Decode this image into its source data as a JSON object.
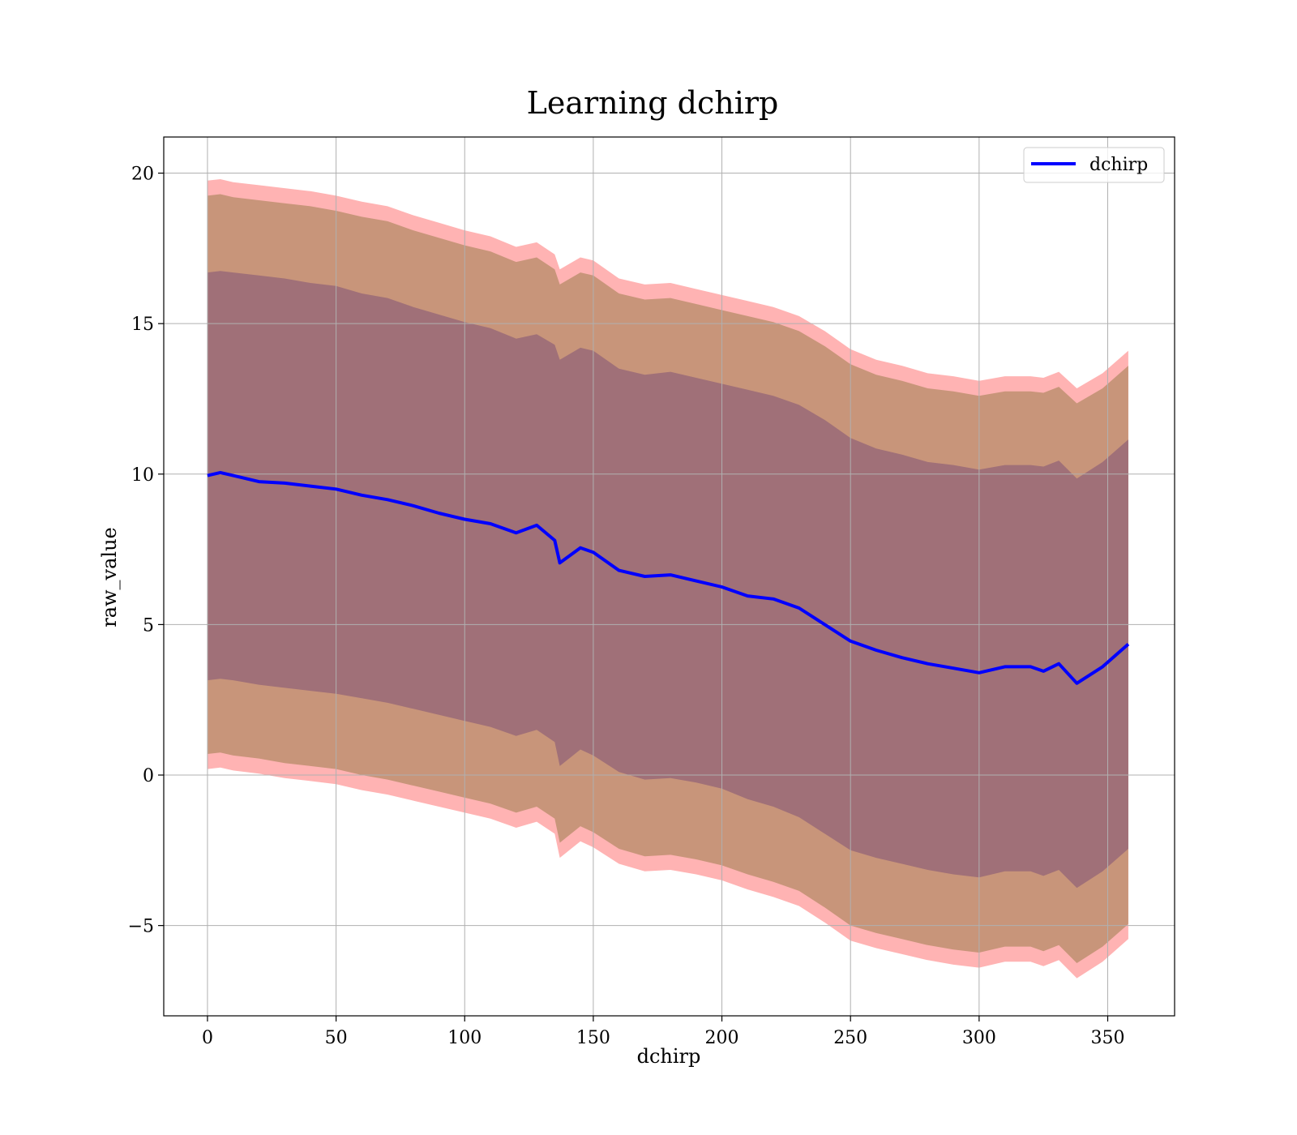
{
  "chart_data": {
    "type": "line",
    "title": "Learning dchirp",
    "xlabel": "dchirp",
    "ylabel": "raw_value",
    "xlim": [
      -17,
      376
    ],
    "ylim": [
      -8.0,
      21.2
    ],
    "x_ticks": [
      0,
      50,
      100,
      150,
      200,
      250,
      300,
      350
    ],
    "y_ticks": [
      -5,
      0,
      5,
      10,
      15,
      20
    ],
    "y_tick_labels": [
      "−5",
      "0",
      "5",
      "10",
      "15",
      "20"
    ],
    "grid": true,
    "legend": {
      "position": "top-right",
      "entries": [
        "dchirp"
      ]
    },
    "colors": {
      "line": "#0000ff",
      "band_outer": "#ffb3b3",
      "band_middle": "#c8957a",
      "band_inner": "#a07078"
    },
    "series": [
      {
        "name": "dchirp",
        "x": [
          0,
          5,
          10,
          20,
          30,
          40,
          50,
          60,
          70,
          80,
          90,
          100,
          110,
          120,
          128,
          135,
          137,
          145,
          150,
          160,
          170,
          180,
          190,
          200,
          210,
          220,
          230,
          240,
          250,
          260,
          270,
          280,
          290,
          300,
          310,
          320,
          325,
          331,
          338,
          348,
          358
        ],
        "mean": [
          9.95,
          10.05,
          9.95,
          9.75,
          9.7,
          9.6,
          9.5,
          9.3,
          9.15,
          8.95,
          8.7,
          8.5,
          8.35,
          8.05,
          8.3,
          7.8,
          7.05,
          7.55,
          7.4,
          6.8,
          6.6,
          6.65,
          6.45,
          6.25,
          5.95,
          5.85,
          5.55,
          5.0,
          4.45,
          4.15,
          3.9,
          3.7,
          3.55,
          3.4,
          3.6,
          3.6,
          3.45,
          3.7,
          3.05,
          3.6,
          4.35
        ],
        "inner_upper": [
          16.7,
          16.75,
          16.7,
          16.6,
          16.5,
          16.35,
          16.25,
          16.0,
          15.85,
          15.55,
          15.3,
          15.05,
          14.85,
          14.5,
          14.65,
          14.3,
          13.8,
          14.2,
          14.1,
          13.5,
          13.3,
          13.4,
          13.2,
          13.0,
          12.8,
          12.6,
          12.3,
          11.8,
          11.2,
          10.85,
          10.65,
          10.4,
          10.3,
          10.15,
          10.3,
          10.3,
          10.25,
          10.45,
          9.85,
          10.4,
          11.15
        ],
        "inner_lower": [
          3.15,
          3.2,
          3.15,
          3.0,
          2.9,
          2.8,
          2.7,
          2.55,
          2.4,
          2.2,
          2.0,
          1.8,
          1.6,
          1.3,
          1.5,
          1.1,
          0.3,
          0.85,
          0.65,
          0.1,
          -0.15,
          -0.1,
          -0.25,
          -0.45,
          -0.8,
          -1.05,
          -1.4,
          -1.95,
          -2.5,
          -2.75,
          -2.95,
          -3.15,
          -3.3,
          -3.4,
          -3.2,
          -3.2,
          -3.35,
          -3.15,
          -3.75,
          -3.2,
          -2.45
        ],
        "middle_upper": [
          19.25,
          19.3,
          19.2,
          19.1,
          19.0,
          18.9,
          18.75,
          18.55,
          18.4,
          18.1,
          17.85,
          17.6,
          17.4,
          17.05,
          17.2,
          16.8,
          16.3,
          16.7,
          16.6,
          16.0,
          15.8,
          15.85,
          15.65,
          15.45,
          15.25,
          15.05,
          14.75,
          14.25,
          13.65,
          13.3,
          13.1,
          12.85,
          12.75,
          12.6,
          12.75,
          12.75,
          12.7,
          12.9,
          12.35,
          12.85,
          13.6
        ],
        "middle_lower": [
          0.7,
          0.75,
          0.65,
          0.55,
          0.4,
          0.3,
          0.2,
          0.0,
          -0.15,
          -0.35,
          -0.55,
          -0.75,
          -0.95,
          -1.25,
          -1.05,
          -1.45,
          -2.25,
          -1.7,
          -1.9,
          -2.45,
          -2.7,
          -2.65,
          -2.8,
          -3.0,
          -3.3,
          -3.55,
          -3.85,
          -4.4,
          -5.0,
          -5.25,
          -5.45,
          -5.65,
          -5.8,
          -5.9,
          -5.7,
          -5.7,
          -5.85,
          -5.65,
          -6.25,
          -5.7,
          -4.95
        ],
        "outer_upper": [
          19.75,
          19.8,
          19.7,
          19.6,
          19.5,
          19.4,
          19.25,
          19.05,
          18.9,
          18.6,
          18.35,
          18.1,
          17.9,
          17.55,
          17.7,
          17.3,
          16.8,
          17.2,
          17.1,
          16.5,
          16.3,
          16.35,
          16.15,
          15.95,
          15.75,
          15.55,
          15.25,
          14.75,
          14.15,
          13.8,
          13.6,
          13.35,
          13.25,
          13.1,
          13.25,
          13.25,
          13.2,
          13.4,
          12.85,
          13.35,
          14.1
        ],
        "outer_lower": [
          0.2,
          0.25,
          0.15,
          0.05,
          -0.1,
          -0.2,
          -0.3,
          -0.5,
          -0.65,
          -0.85,
          -1.05,
          -1.25,
          -1.45,
          -1.75,
          -1.55,
          -1.95,
          -2.75,
          -2.2,
          -2.4,
          -2.95,
          -3.2,
          -3.15,
          -3.3,
          -3.5,
          -3.8,
          -4.05,
          -4.35,
          -4.9,
          -5.5,
          -5.75,
          -5.95,
          -6.15,
          -6.3,
          -6.4,
          -6.2,
          -6.2,
          -6.35,
          -6.15,
          -6.75,
          -6.2,
          -5.45
        ]
      }
    ]
  }
}
